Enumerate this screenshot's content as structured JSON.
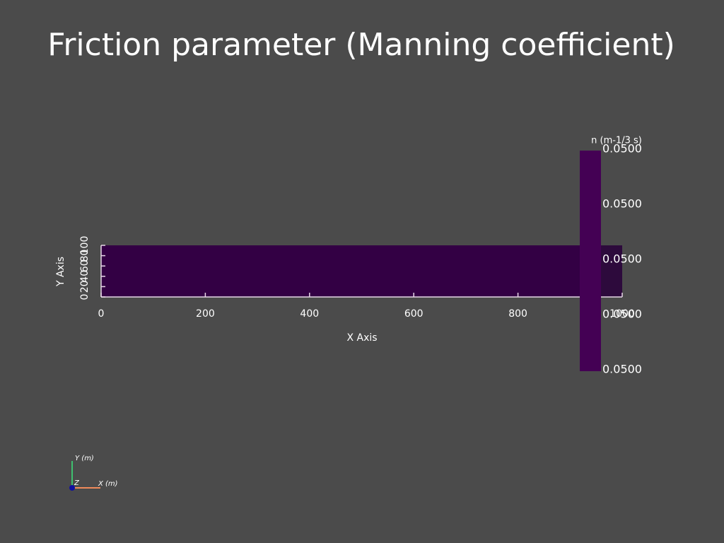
{
  "title": "Friction parameter (Manning coefficient)",
  "plot": {
    "x_axis": {
      "label": "X Axis",
      "ticks": [
        0,
        200,
        400,
        600,
        800,
        1000
      ]
    },
    "y_axis": {
      "label": "Y Axis",
      "ticks": [
        0,
        20,
        40,
        60,
        80,
        100
      ]
    }
  },
  "colorbar": {
    "title": "n (m-1/3 s)",
    "labels": [
      "0.0500",
      "0.0500",
      "0.0500",
      "0.0500",
      "0.0500"
    ]
  },
  "orientation": {
    "y": "Y (m)",
    "x": "X (m)",
    "z": "Z"
  }
}
